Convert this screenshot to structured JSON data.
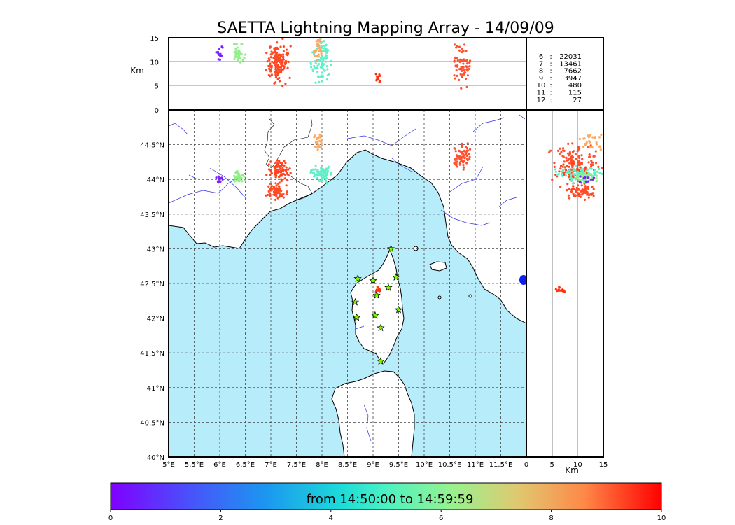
{
  "title": "SAETTA Lightning Mapping Array - 14/09/09",
  "colorbar": {
    "label": "from 14:50:00 to 14:59:59",
    "ticks": [
      "0",
      "2",
      "4",
      "6",
      "8",
      "10"
    ]
  },
  "colors": {
    "sea": "#b7ecfb",
    "rivers": "#2e2ee6",
    "frame": "#000000",
    "stations": "#7cfc00",
    "highlight_count": "#ff0000"
  },
  "chart_data": {
    "type": "scatter",
    "title": "SAETTA Lightning Mapping Array - 14/09/09",
    "time_range": "from 14:50:00 to 14:59:59",
    "color_scale": {
      "range": [
        0,
        10
      ],
      "colormap": "rainbow"
    },
    "map": {
      "lon_ticks": [
        "5°E",
        "5.5°E",
        "6°E",
        "6.5°E",
        "7°E",
        "7.5°E",
        "8°E",
        "8.5°E",
        "9°E",
        "9.5°E",
        "10°E",
        "10.5°E",
        "11°E",
        "11.5°E"
      ],
      "lat_ticks": [
        "40°N",
        "40.5°N",
        "41°N",
        "41.5°N",
        "42°N",
        "42.5°N",
        "43°N",
        "43.5°N",
        "44°N",
        "44.5°N"
      ],
      "lon_range": [
        5,
        12
      ],
      "lat_range": [
        40,
        45
      ]
    },
    "altitude_panel": {
      "ylabel": "Km",
      "ticks": [
        "0",
        "5",
        "10",
        "15"
      ],
      "range": [
        0,
        15
      ]
    },
    "side_panel": {
      "xlabel": "Km",
      "ticks": [
        "0",
        "5",
        "10",
        "15"
      ],
      "range": [
        0,
        15
      ]
    },
    "counts": [
      {
        "level": "6",
        "count": "22031"
      },
      {
        "level": "7",
        "count": "13461",
        "highlight": true
      },
      {
        "level": "8",
        "count": "7662"
      },
      {
        "level": "9",
        "count": "3947"
      },
      {
        "level": "10",
        "count": "480"
      },
      {
        "level": "11",
        "count": "115"
      },
      {
        "level": "12",
        "count": "27"
      }
    ],
    "stations": [
      {
        "lon": 9.35,
        "lat": 43.0
      },
      {
        "lon": 8.7,
        "lat": 42.57
      },
      {
        "lon": 9.0,
        "lat": 42.54
      },
      {
        "lon": 9.45,
        "lat": 42.59
      },
      {
        "lon": 9.3,
        "lat": 42.44
      },
      {
        "lon": 9.07,
        "lat": 42.33
      },
      {
        "lon": 8.65,
        "lat": 42.23
      },
      {
        "lon": 9.5,
        "lat": 42.12
      },
      {
        "lon": 9.04,
        "lat": 42.04
      },
      {
        "lon": 8.68,
        "lat": 42.01
      },
      {
        "lon": 9.15,
        "lat": 41.86
      },
      {
        "lon": 9.15,
        "lat": 41.38
      }
    ],
    "clusters": [
      {
        "name": "ligurian-alps",
        "lon": 7.17,
        "lat": 44.12,
        "lon_sd": 0.09,
        "lat_sd": 0.07,
        "alt": 9.5,
        "alt_sd": 2.0,
        "color": "#ff4422",
        "n": 90
      },
      {
        "name": "nice-hinterland",
        "lon": 7.12,
        "lat": 43.82,
        "lon_sd": 0.09,
        "lat_sd": 0.05,
        "alt": 10.5,
        "alt_sd": 1.5,
        "color": "#ff4a25",
        "n": 70
      },
      {
        "name": "genoa",
        "lon": 8.03,
        "lat": 44.07,
        "lon_sd": 0.1,
        "lat_sd": 0.05,
        "alt": 10.0,
        "alt_sd": 2.0,
        "color": "#60f0c8",
        "n": 90
      },
      {
        "name": "genoa-north",
        "lon": 7.92,
        "lat": 44.52,
        "lon_sd": 0.04,
        "lat_sd": 0.06,
        "alt": 12.5,
        "alt_sd": 1.5,
        "color": "#ffa860",
        "n": 25
      },
      {
        "name": "alps-west",
        "lon": 6.35,
        "lat": 44.03,
        "lon_sd": 0.06,
        "lat_sd": 0.04,
        "alt": 11.5,
        "alt_sd": 1.0,
        "color": "#90f088",
        "n": 35
      },
      {
        "name": "alps-far-west",
        "lon": 6.0,
        "lat": 44.0,
        "lon_sd": 0.04,
        "lat_sd": 0.03,
        "alt": 12.0,
        "alt_sd": 1.0,
        "color": "#7a20ff",
        "n": 12
      },
      {
        "name": "tuscany",
        "lon": 10.74,
        "lat": 44.32,
        "lon_sd": 0.08,
        "lat_sd": 0.09,
        "alt": 9.5,
        "alt_sd": 2.0,
        "color": "#ff5030",
        "n": 70
      },
      {
        "name": "corsica-cell",
        "lon": 9.1,
        "lat": 42.4,
        "lon_sd": 0.03,
        "lat_sd": 0.02,
        "alt": 6.5,
        "alt_sd": 0.6,
        "color": "#ff3010",
        "n": 15
      }
    ]
  }
}
